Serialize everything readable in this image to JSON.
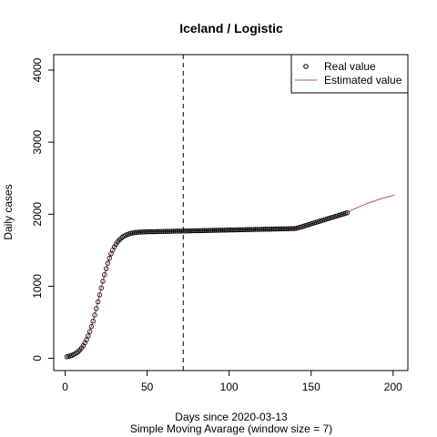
{
  "chart_data": {
    "type": "line",
    "title": "Iceland / Logistic",
    "xlabel": "Days since 2020-03-13",
    "subtitle": "Simple Moving Avarage (window size = 7)",
    "ylabel": "Daily cases",
    "xlim": [
      -7,
      209
    ],
    "ylim": [
      -170,
      4215
    ],
    "xticks": [
      0,
      50,
      100,
      150,
      200
    ],
    "yticks": [
      0,
      1000,
      2000,
      3000,
      4000
    ],
    "vline": 72,
    "legend": "top-right",
    "series": [
      {
        "name": "Real value",
        "type": "scatter",
        "color": "#000000",
        "x": [
          1,
          2,
          3,
          4,
          5,
          6,
          7,
          8,
          9,
          10,
          11,
          12,
          13,
          14,
          15,
          16,
          17,
          18,
          19,
          20,
          21,
          22,
          23,
          24,
          25,
          26,
          27,
          28,
          29,
          30,
          31,
          32,
          33,
          34,
          35,
          36,
          37,
          38,
          39,
          40,
          41,
          42,
          43,
          44,
          45,
          46,
          47,
          48,
          49,
          50,
          51,
          52,
          53,
          54,
          55,
          56,
          57,
          58,
          59,
          60,
          61,
          62,
          63,
          64,
          65,
          66,
          67,
          68,
          69,
          70,
          71,
          72,
          73,
          74,
          75,
          76,
          77,
          78,
          79,
          80,
          81,
          82,
          83,
          84,
          85,
          86,
          87,
          88,
          89,
          90,
          91,
          92,
          93,
          94,
          95,
          96,
          97,
          98,
          99,
          100,
          101,
          102,
          103,
          104,
          105,
          106,
          107,
          108,
          109,
          110,
          111,
          112,
          113,
          114,
          115,
          116,
          117,
          118,
          119,
          120,
          121,
          122,
          123,
          124,
          125,
          126,
          127,
          128,
          129,
          130,
          131,
          132,
          133,
          134,
          135,
          136,
          137,
          138,
          139,
          140,
          141,
          142,
          143,
          144,
          145,
          146,
          147,
          148,
          149,
          150,
          151,
          152,
          153,
          154,
          155,
          156,
          157,
          158,
          159,
          160,
          161,
          162,
          163,
          164,
          165,
          166,
          167,
          168,
          169,
          170,
          171,
          172
        ],
        "values": [
          21,
          27,
          33,
          41,
          51,
          63,
          77,
          95,
          117,
          143,
          175,
          214,
          258,
          311,
          371,
          440,
          516,
          601,
          690,
          784,
          880,
          976,
          1071,
          1160,
          1244,
          1320,
          1389,
          1450,
          1502,
          1547,
          1584,
          1616,
          1643,
          1665,
          1683,
          1697,
          1709,
          1719,
          1727,
          1734,
          1739,
          1743,
          1746,
          1749,
          1751,
          1752,
          1753,
          1754,
          1755,
          1756,
          1756,
          1757,
          1757,
          1758,
          1758,
          1759,
          1759,
          1760,
          1760,
          1761,
          1761,
          1762,
          1762,
          1763,
          1763,
          1764,
          1764,
          1765,
          1765,
          1766,
          1766,
          1767,
          1767,
          1768,
          1768,
          1769,
          1769,
          1770,
          1770,
          1771,
          1771,
          1772,
          1772,
          1773,
          1773,
          1774,
          1774,
          1775,
          1775,
          1776,
          1776,
          1777,
          1777,
          1778,
          1778,
          1779,
          1779,
          1780,
          1780,
          1781,
          1781,
          1782,
          1782,
          1783,
          1783,
          1784,
          1784,
          1785,
          1785,
          1786,
          1786,
          1787,
          1787,
          1788,
          1788,
          1789,
          1789,
          1790,
          1790,
          1791,
          1791,
          1792,
          1792,
          1793,
          1793,
          1794,
          1794,
          1795,
          1795,
          1796,
          1796,
          1797,
          1797,
          1798,
          1798,
          1799,
          1799,
          1800,
          1800,
          1801,
          1805,
          1811,
          1817,
          1824,
          1831,
          1838,
          1845,
          1852,
          1859,
          1866,
          1873,
          1880,
          1887,
          1894,
          1901,
          1908,
          1915,
          1922,
          1929,
          1936,
          1943,
          1950,
          1957,
          1964,
          1971,
          1978,
          1985,
          1992,
          1999,
          2006,
          2013,
          2020
        ]
      },
      {
        "name": "Estimated value",
        "type": "line",
        "color": "#c0504d",
        "x": [
          1,
          5,
          8,
          10,
          12,
          14,
          16,
          18,
          20,
          22,
          24,
          26,
          28,
          30,
          32,
          35,
          40,
          45,
          50,
          60,
          80,
          100,
          120,
          140,
          145,
          150,
          155,
          160,
          165,
          170,
          175,
          180,
          185,
          190,
          195,
          201
        ],
        "values": [
          21,
          51,
          95,
          143,
          214,
          311,
          440,
          601,
          784,
          976,
          1160,
          1320,
          1450,
          1547,
          1616,
          1683,
          1734,
          1751,
          1756,
          1761,
          1771,
          1781,
          1791,
          1801,
          1831,
          1866,
          1901,
          1936,
          1971,
          2006,
          2060,
          2110,
          2155,
          2195,
          2230,
          2265
        ]
      }
    ]
  }
}
